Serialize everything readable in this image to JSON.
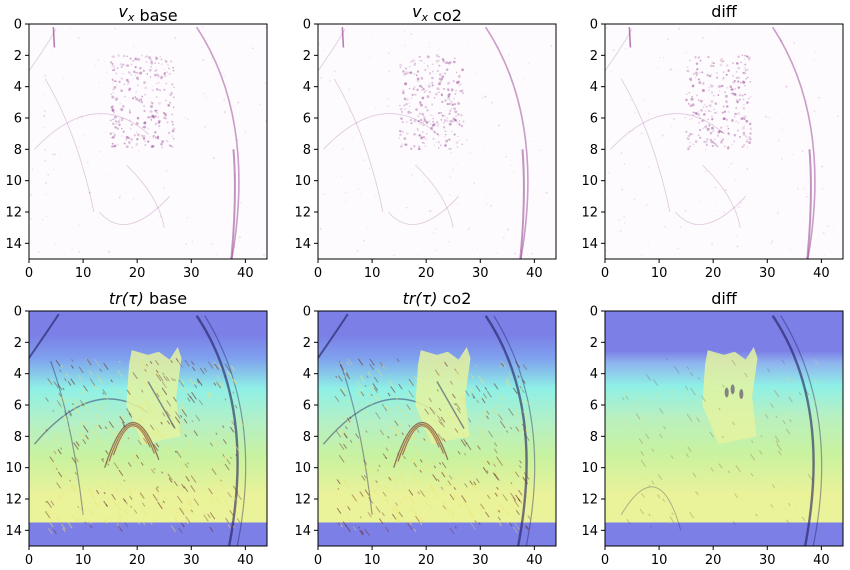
{
  "chart_data": [
    {
      "type": "heatmap",
      "title_parts": [
        {
          "text": "v",
          "italic": true
        },
        {
          "text": "x",
          "italic": true,
          "sub": true
        },
        {
          "text": " base",
          "italic": false
        }
      ],
      "xlim": [
        0,
        44
      ],
      "ylim": [
        15,
        0
      ],
      "x_ticks": [
        0,
        10,
        20,
        30,
        40
      ],
      "y_ticks": [
        0,
        2,
        4,
        6,
        8,
        10,
        12,
        14
      ],
      "colormap": "purple-white",
      "row": 0,
      "col": 0
    },
    {
      "type": "heatmap",
      "title_parts": [
        {
          "text": "v",
          "italic": true
        },
        {
          "text": "x",
          "italic": true,
          "sub": true
        },
        {
          "text": " co2",
          "italic": false
        }
      ],
      "xlim": [
        0,
        44
      ],
      "ylim": [
        15,
        0
      ],
      "x_ticks": [
        0,
        10,
        20,
        30,
        40
      ],
      "y_ticks": [
        0,
        2,
        4,
        6,
        8,
        10,
        12,
        14
      ],
      "colormap": "purple-white",
      "row": 0,
      "col": 1
    },
    {
      "type": "heatmap",
      "title_parts": [
        {
          "text": "diff",
          "italic": false
        }
      ],
      "xlim": [
        0,
        44
      ],
      "ylim": [
        15,
        0
      ],
      "x_ticks": [
        0,
        10,
        20,
        30,
        40
      ],
      "y_ticks": [
        0,
        2,
        4,
        6,
        8,
        10,
        12,
        14
      ],
      "colormap": "purple-white",
      "row": 0,
      "col": 2
    },
    {
      "type": "heatmap",
      "title_parts": [
        {
          "text": "tr(τ)",
          "italic": true
        },
        {
          "text": " base",
          "italic": false
        }
      ],
      "xlim": [
        0,
        44
      ],
      "ylim": [
        15,
        0
      ],
      "x_ticks": [
        0,
        10,
        20,
        30,
        40
      ],
      "y_ticks": [
        0,
        2,
        4,
        6,
        8,
        10,
        12,
        14
      ],
      "colormap": "jet-overlay",
      "row": 1,
      "col": 0
    },
    {
      "type": "heatmap",
      "title_parts": [
        {
          "text": "tr(τ)",
          "italic": true
        },
        {
          "text": " co2",
          "italic": false
        }
      ],
      "xlim": [
        0,
        44
      ],
      "ylim": [
        15,
        0
      ],
      "x_ticks": [
        0,
        10,
        20,
        30,
        40
      ],
      "y_ticks": [
        0,
        2,
        4,
        6,
        8,
        10,
        12,
        14
      ],
      "colormap": "jet-overlay",
      "row": 1,
      "col": 1
    },
    {
      "type": "heatmap",
      "title_parts": [
        {
          "text": "diff",
          "italic": false
        }
      ],
      "xlim": [
        0,
        44
      ],
      "ylim": [
        15,
        0
      ],
      "x_ticks": [
        0,
        10,
        20,
        30,
        40
      ],
      "y_ticks": [
        0,
        2,
        4,
        6,
        8,
        10,
        12,
        14
      ],
      "colormap": "jet-overlay",
      "row": 1,
      "col": 2
    }
  ],
  "colors": {
    "axis": "#000000",
    "vx_stroke": "#8a2b86",
    "jet_top": "#7b7fe6",
    "jet_cyan": "#8ff0e6",
    "jet_green": "#c8f2a0",
    "jet_yellow": "#eaf29a",
    "jet_bottom": "#7b7fe6",
    "dark_stroke": "#1f1a5a"
  }
}
